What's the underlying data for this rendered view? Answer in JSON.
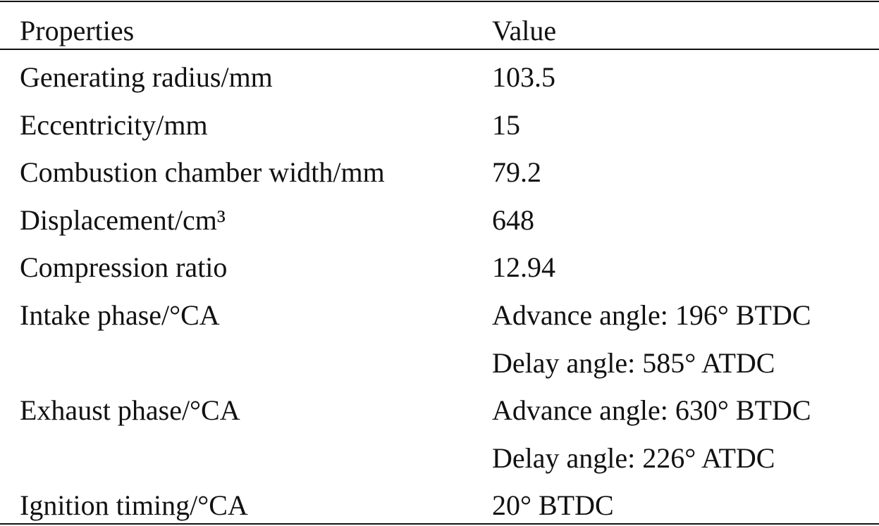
{
  "table": {
    "header": [
      "Properties",
      "Value"
    ],
    "rows": [
      {
        "property": "Generating radius/mm",
        "values": [
          "103.5"
        ]
      },
      {
        "property": "Eccentricity/mm",
        "values": [
          "15"
        ]
      },
      {
        "property": "Combustion chamber width/mm",
        "values": [
          "79.2"
        ]
      },
      {
        "property": "Displacement/cm³",
        "values": [
          "648"
        ]
      },
      {
        "property": "Compression ratio",
        "values": [
          "12.94"
        ]
      },
      {
        "property": "Intake phase/°CA",
        "values": [
          "Advance angle: 196° BTDC",
          "Delay angle: 585° ATDC"
        ]
      },
      {
        "property": "Exhaust phase/°CA",
        "values": [
          "Advance angle: 630° BTDC",
          "Delay angle: 226° ATDC"
        ]
      },
      {
        "property": "Ignition timing/°CA",
        "values": [
          "20° BTDC"
        ]
      }
    ]
  }
}
